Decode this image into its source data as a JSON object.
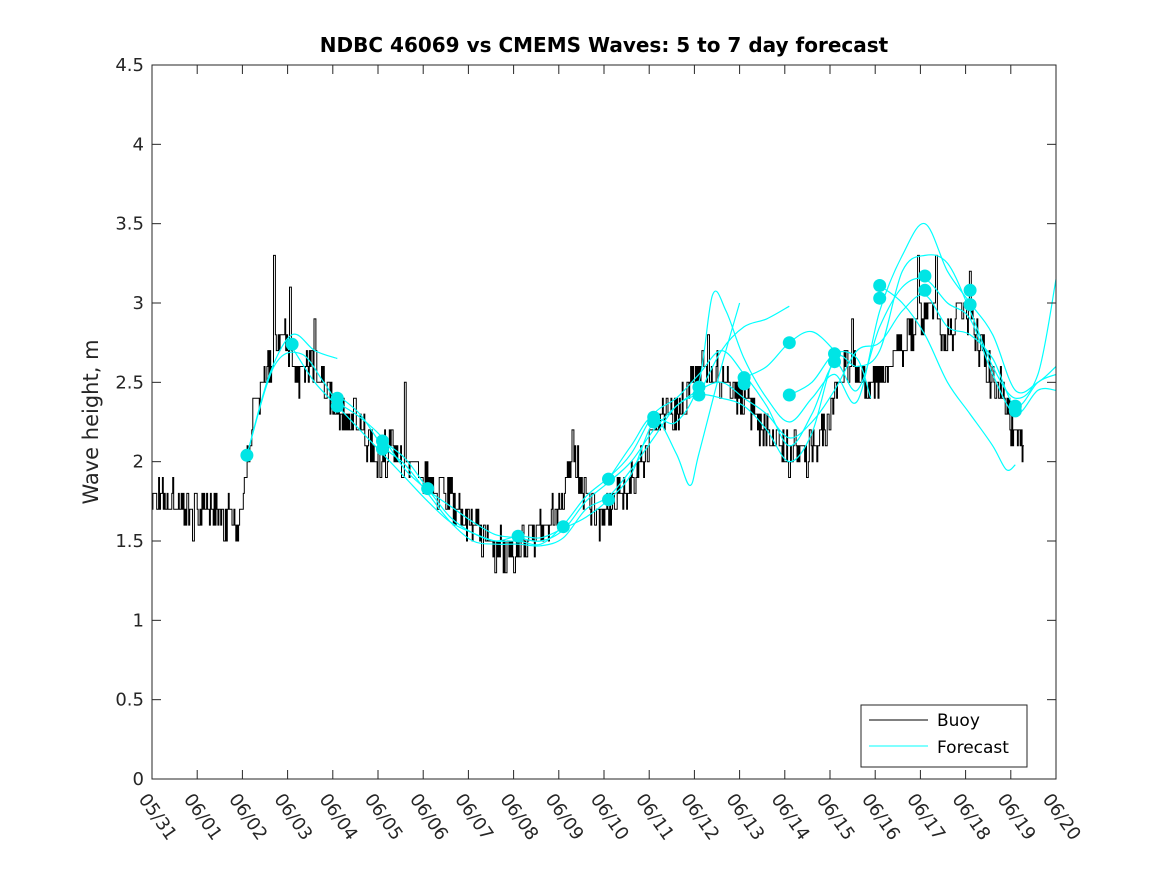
{
  "chart_data": {
    "type": "line",
    "title": "NDBC 46069 vs CMEMS Waves: 5 to 7 day forecast",
    "xlabel": "",
    "ylabel": "Wave height, m",
    "x_tick_labels": [
      "05/31",
      "06/01",
      "06/02",
      "06/03",
      "06/04",
      "06/05",
      "06/06",
      "06/07",
      "06/08",
      "06/09",
      "06/10",
      "06/11",
      "06/12",
      "06/13",
      "06/14",
      "06/15",
      "06/16",
      "06/17",
      "06/18",
      "06/19",
      "06/20"
    ],
    "y_tick_labels": [
      "0",
      "0.5",
      "1",
      "1.5",
      "2",
      "2.5",
      "3",
      "3.5",
      "4",
      "4.5"
    ],
    "xlim": [
      0,
      20
    ],
    "ylim": [
      0,
      4.5
    ],
    "x_units": "days since 05/31",
    "grid": false,
    "legend_position": "bottom-right",
    "colors": {
      "buoy": "#000000",
      "forecast": "#00ffff",
      "marker": "#00e5e5"
    },
    "buoy": {
      "name": "Buoy",
      "anchors": [
        [
          0,
          1.8
        ],
        [
          0.5,
          1.75
        ],
        [
          1.0,
          1.7
        ],
        [
          1.5,
          1.65
        ],
        [
          1.9,
          1.65
        ],
        [
          2.1,
          2.0
        ],
        [
          2.3,
          2.4
        ],
        [
          2.6,
          2.6
        ],
        [
          2.9,
          2.8
        ],
        [
          3.2,
          2.55
        ],
        [
          3.5,
          2.65
        ],
        [
          3.8,
          2.5
        ],
        [
          4.1,
          2.35
        ],
        [
          4.5,
          2.3
        ],
        [
          5.0,
          2.0
        ],
        [
          5.3,
          2.1
        ],
        [
          5.6,
          2.0
        ],
        [
          5.9,
          1.9
        ],
        [
          6.2,
          1.85
        ],
        [
          6.5,
          1.8
        ],
        [
          7.0,
          1.6
        ],
        [
          7.5,
          1.5
        ],
        [
          7.9,
          1.4
        ],
        [
          8.2,
          1.5
        ],
        [
          8.6,
          1.55
        ],
        [
          9.0,
          1.7
        ],
        [
          9.3,
          2.05
        ],
        [
          9.6,
          1.8
        ],
        [
          9.9,
          1.6
        ],
        [
          10.2,
          1.75
        ],
        [
          10.6,
          1.85
        ],
        [
          11.0,
          2.1
        ],
        [
          11.3,
          2.35
        ],
        [
          11.6,
          2.3
        ],
        [
          11.9,
          2.45
        ],
        [
          12.2,
          2.65
        ],
        [
          12.5,
          2.55
        ],
        [
          12.9,
          2.45
        ],
        [
          13.2,
          2.35
        ],
        [
          13.6,
          2.2
        ],
        [
          14.0,
          2.1
        ],
        [
          14.5,
          2.05
        ],
        [
          14.9,
          2.2
        ],
        [
          15.2,
          2.5
        ],
        [
          15.5,
          2.6
        ],
        [
          15.8,
          2.5
        ],
        [
          16.2,
          2.55
        ],
        [
          16.5,
          2.7
        ],
        [
          16.9,
          2.85
        ],
        [
          17.2,
          2.95
        ],
        [
          17.6,
          2.75
        ],
        [
          17.9,
          2.95
        ],
        [
          18.2,
          2.85
        ],
        [
          18.5,
          2.55
        ],
        [
          18.8,
          2.45
        ],
        [
          19.0,
          2.25
        ],
        [
          19.3,
          2.0
        ]
      ],
      "peaks": [
        [
          2.7,
          3.3
        ],
        [
          3.05,
          3.1
        ],
        [
          3.6,
          2.9
        ],
        [
          5.6,
          2.5
        ],
        [
          9.3,
          2.2
        ],
        [
          12.3,
          2.8
        ],
        [
          15.5,
          2.9
        ],
        [
          16.95,
          3.3
        ],
        [
          17.35,
          3.3
        ],
        [
          18.1,
          3.2
        ]
      ],
      "troughs": [
        [
          0.9,
          1.5
        ],
        [
          1.6,
          1.5
        ],
        [
          7.6,
          1.3
        ],
        [
          8.0,
          1.3
        ],
        [
          14.1,
          1.9
        ],
        [
          14.5,
          1.9
        ]
      ]
    },
    "forecast": {
      "name": "Forecast",
      "lines": [
        [
          [
            2.1,
            2.04
          ],
          [
            2.6,
            2.55
          ],
          [
            3.1,
            2.8
          ],
          [
            3.6,
            2.7
          ],
          [
            4.1,
            2.65
          ]
        ],
        [
          [
            2.1,
            2.04
          ],
          [
            2.7,
            2.6
          ],
          [
            3.3,
            2.68
          ],
          [
            3.8,
            2.5
          ],
          [
            4.1,
            2.38
          ],
          [
            4.6,
            2.28
          ],
          [
            5.1,
            2.15
          ],
          [
            5.6,
            1.95
          ],
          [
            6.1,
            1.82
          ],
          [
            6.6,
            1.72
          ],
          [
            7.1,
            1.62
          ],
          [
            7.6,
            1.54
          ],
          [
            8.1,
            1.52
          ],
          [
            8.6,
            1.5
          ],
          [
            9.1,
            1.57
          ],
          [
            9.6,
            1.75
          ],
          [
            10.1,
            1.87
          ],
          [
            10.6,
            2.0
          ],
          [
            11.1,
            2.2
          ],
          [
            11.6,
            2.35
          ],
          [
            12.1,
            2.45
          ],
          [
            12.6,
            2.5
          ],
          [
            13.1,
            2.4
          ],
          [
            13.6,
            2.3
          ],
          [
            14.1,
            2.15
          ],
          [
            14.6,
            2.25
          ],
          [
            15.1,
            2.45
          ],
          [
            15.6,
            2.7
          ],
          [
            16.1,
            2.75
          ],
          [
            16.6,
            2.95
          ],
          [
            17.1,
            3.05
          ],
          [
            17.6,
            2.85
          ],
          [
            18.1,
            2.8
          ],
          [
            18.6,
            2.65
          ],
          [
            19.1,
            2.35
          ],
          [
            19.6,
            2.5
          ],
          [
            20.0,
            2.55
          ]
        ],
        [
          [
            3.1,
            2.72
          ],
          [
            3.6,
            2.5
          ],
          [
            4.1,
            2.35
          ],
          [
            4.6,
            2.2
          ],
          [
            5.1,
            2.05
          ],
          [
            5.6,
            1.9
          ],
          [
            6.1,
            1.75
          ],
          [
            6.6,
            1.62
          ],
          [
            7.1,
            1.55
          ],
          [
            7.6,
            1.5
          ],
          [
            8.1,
            1.5
          ],
          [
            8.6,
            1.48
          ],
          [
            9.1,
            1.6
          ],
          [
            9.6,
            1.78
          ],
          [
            10.1,
            1.9
          ],
          [
            10.6,
            2.05
          ],
          [
            11.1,
            2.3
          ],
          [
            11.6,
            2.4
          ],
          [
            12.1,
            2.55
          ],
          [
            12.6,
            2.7
          ],
          [
            13.1,
            2.55
          ],
          [
            13.6,
            2.35
          ],
          [
            14.1,
            2.1
          ],
          [
            14.6,
            2.3
          ],
          [
            15.1,
            2.62
          ],
          [
            15.6,
            2.45
          ],
          [
            16.1,
            2.85
          ],
          [
            16.6,
            3.1
          ],
          [
            17.1,
            3.15
          ],
          [
            17.6,
            3.0
          ],
          [
            18.1,
            2.9
          ],
          [
            18.6,
            2.55
          ],
          [
            19.1,
            2.3
          ],
          [
            19.6,
            2.45
          ],
          [
            20.0,
            2.45
          ]
        ],
        [
          [
            4.1,
            2.42
          ],
          [
            4.6,
            2.3
          ],
          [
            5.1,
            2.1
          ],
          [
            5.6,
            1.98
          ],
          [
            6.1,
            1.8
          ],
          [
            6.6,
            1.62
          ],
          [
            7.1,
            1.5
          ],
          [
            7.6,
            1.48
          ],
          [
            8.1,
            1.48
          ],
          [
            8.6,
            1.47
          ],
          [
            9.1,
            1.52
          ],
          [
            9.6,
            1.7
          ],
          [
            10.1,
            1.78
          ],
          [
            10.6,
            1.95
          ],
          [
            11.1,
            2.15
          ],
          [
            11.6,
            2.35
          ],
          [
            12.1,
            2.42
          ],
          [
            12.6,
            2.4
          ],
          [
            13.1,
            2.35
          ],
          [
            13.6,
            2.2
          ],
          [
            14.1,
            2.0
          ],
          [
            14.6,
            2.18
          ],
          [
            15.1,
            2.65
          ],
          [
            15.6,
            2.6
          ],
          [
            16.1,
            2.7
          ],
          [
            16.6,
            3.2
          ],
          [
            17.1,
            3.3
          ],
          [
            17.6,
            3.25
          ],
          [
            18.1,
            2.95
          ],
          [
            18.6,
            2.6
          ],
          [
            19.1,
            2.4
          ],
          [
            19.6,
            2.55
          ],
          [
            20.0,
            3.15
          ]
        ],
        [
          [
            5.1,
            2.13
          ],
          [
            5.6,
            2.02
          ],
          [
            6.1,
            1.83
          ],
          [
            6.6,
            1.65
          ],
          [
            7.1,
            1.55
          ],
          [
            7.6,
            1.5
          ],
          [
            8.1,
            1.53
          ],
          [
            8.6,
            1.52
          ],
          [
            9.1,
            1.58
          ],
          [
            9.6,
            1.65
          ],
          [
            10.1,
            1.76
          ],
          [
            10.6,
            1.92
          ],
          [
            11.1,
            2.25
          ],
          [
            11.6,
            2.25
          ],
          [
            12.1,
            2.5
          ],
          [
            12.4,
            3.05
          ],
          [
            12.7,
            2.95
          ],
          [
            13.1,
            2.65
          ],
          [
            13.6,
            2.4
          ],
          [
            14.1,
            2.25
          ],
          [
            14.6,
            2.4
          ],
          [
            15.1,
            2.55
          ],
          [
            15.6,
            2.38
          ],
          [
            16.1,
            2.95
          ],
          [
            16.6,
            3.3
          ],
          [
            17.1,
            3.5
          ],
          [
            17.6,
            3.2
          ],
          [
            18.1,
            3.0
          ],
          [
            18.6,
            2.8
          ],
          [
            19.1,
            2.45
          ],
          [
            19.6,
            2.5
          ],
          [
            20.0,
            2.6
          ]
        ],
        [
          [
            10.1,
            1.89
          ],
          [
            10.6,
            2.1
          ],
          [
            11.1,
            2.28
          ],
          [
            11.6,
            2.05
          ],
          [
            11.9,
            1.85
          ],
          [
            12.1,
            2.05
          ],
          [
            12.6,
            2.6
          ],
          [
            13.0,
            3.0
          ]
        ],
        [
          [
            12.1,
            2.42
          ],
          [
            12.6,
            2.7
          ],
          [
            13.1,
            2.85
          ],
          [
            13.6,
            2.9
          ],
          [
            14.1,
            2.98
          ]
        ],
        [
          [
            13.1,
            2.53
          ],
          [
            13.6,
            2.6
          ],
          [
            14.1,
            2.75
          ],
          [
            14.6,
            2.82
          ],
          [
            15.1,
            2.7
          ]
        ],
        [
          [
            14.1,
            2.42
          ],
          [
            14.6,
            2.5
          ],
          [
            15.1,
            2.68
          ],
          [
            15.6,
            2.65
          ],
          [
            15.9,
            2.4
          ]
        ],
        [
          [
            16.1,
            3.11
          ],
          [
            16.6,
            3.0
          ],
          [
            17.1,
            2.8
          ],
          [
            17.6,
            2.5
          ],
          [
            18.1,
            2.3
          ],
          [
            18.6,
            2.1
          ],
          [
            18.9,
            1.95
          ],
          [
            19.1,
            1.98
          ]
        ]
      ],
      "markers": [
        [
          2.1,
          2.04
        ],
        [
          3.1,
          2.74
        ],
        [
          4.1,
          2.35
        ],
        [
          4.1,
          2.4
        ],
        [
          5.1,
          2.08
        ],
        [
          5.1,
          2.13
        ],
        [
          6.1,
          1.83
        ],
        [
          8.1,
          1.53
        ],
        [
          9.1,
          1.59
        ],
        [
          10.1,
          1.76
        ],
        [
          10.1,
          1.89
        ],
        [
          11.1,
          2.25
        ],
        [
          11.1,
          2.28
        ],
        [
          12.1,
          2.42
        ],
        [
          12.1,
          2.47
        ],
        [
          13.1,
          2.49
        ],
        [
          13.1,
          2.53
        ],
        [
          14.1,
          2.42
        ],
        [
          14.1,
          2.75
        ],
        [
          15.1,
          2.63
        ],
        [
          15.1,
          2.68
        ],
        [
          16.1,
          3.03
        ],
        [
          16.1,
          3.11
        ],
        [
          17.1,
          3.08
        ],
        [
          17.1,
          3.17
        ],
        [
          18.1,
          2.99
        ],
        [
          18.1,
          3.08
        ],
        [
          19.1,
          2.32
        ],
        [
          19.1,
          2.35
        ]
      ]
    }
  }
}
